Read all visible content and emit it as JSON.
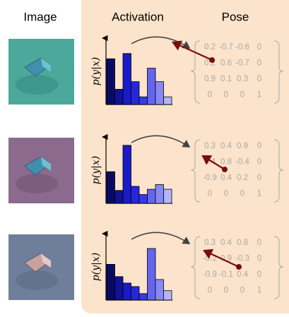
{
  "header": {
    "image": "Image",
    "activation": "Activation",
    "pose": "Pose"
  },
  "y_label": "p(y|x)",
  "rows": [
    {
      "activations": [
        78,
        26,
        87,
        39,
        13,
        62,
        39,
        13
      ],
      "matrix": [
        [
          "0.2",
          "-0.7",
          "-0.6",
          "0"
        ],
        [
          "0.2",
          "0.6",
          "-0.7",
          "0"
        ],
        [
          "0.9",
          "0.1",
          "0.3",
          "0"
        ],
        [
          "0",
          "0",
          "0",
          "1"
        ]
      ]
    },
    {
      "activations": [
        54,
        22,
        99,
        29,
        15,
        24,
        32,
        24
      ],
      "matrix": [
        [
          "0.3",
          "0.4",
          "0.9",
          "0"
        ],
        [
          "0.4",
          "0.8",
          "-0.4",
          "0"
        ],
        [
          "-0.9",
          "0.4",
          "0.2",
          "0"
        ],
        [
          "0",
          "0",
          "0",
          "1"
        ]
      ]
    },
    {
      "activations": [
        61,
        40,
        29,
        23,
        11,
        88,
        35,
        16
      ],
      "matrix": [
        [
          "0.3",
          "0.4",
          "0.8",
          "0"
        ],
        [
          "-0.2",
          "0.9",
          "-0.3",
          "0"
        ],
        [
          "-0.9",
          "-0.1",
          "0.4",
          "0"
        ],
        [
          "0",
          "0",
          "0",
          "1"
        ]
      ]
    }
  ]
}
